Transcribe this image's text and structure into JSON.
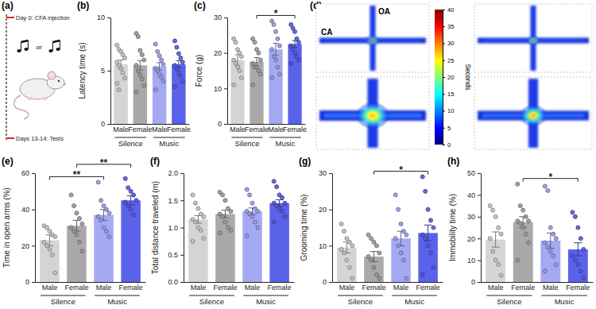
{
  "schematic": {
    "panel": "(a)",
    "start_label": "Day 0: CFA injection",
    "choice_label": "or",
    "end_label": "Days 13-14: Tests"
  },
  "heatmap_panel": {
    "panel": "(d)",
    "open_arm_label": "OA",
    "closed_arm_label": "CA",
    "colorbar": {
      "title": "Seconds",
      "range": [
        0,
        40
      ],
      "ticks": [
        0,
        5,
        10,
        15,
        20,
        25,
        30,
        35,
        40
      ]
    }
  },
  "chart_data": [
    {
      "type": "bar",
      "panel": "(b)",
      "y_label": "Latency time (s)",
      "categories": [
        "Male",
        "Female",
        "Male",
        "Female"
      ],
      "category_groups": [
        "Silence",
        "Silence",
        "Music",
        "Music"
      ],
      "values": [
        5.6,
        5.5,
        5.4,
        5.6
      ],
      "errors": [
        0.4,
        0.45,
        0.35,
        0.35
      ],
      "points": [
        [
          7.4,
          7.0,
          6.8,
          6.5,
          6.2,
          5.8,
          5.5,
          5.2,
          4.8,
          4.3,
          3.8,
          3.2
        ],
        [
          8.5,
          8.2,
          6.9,
          6.5,
          6.0,
          5.5,
          5.0,
          4.6,
          4.2,
          3.6,
          3.0
        ],
        [
          7.5,
          6.8,
          6.4,
          6.0,
          5.6,
          5.2,
          5.0,
          4.7,
          4.4,
          4.0,
          3.2
        ],
        [
          7.8,
          7.2,
          6.6,
          6.2,
          5.8,
          5.5,
          5.2,
          4.8,
          4.5,
          4.0,
          3.5
        ]
      ],
      "colors": [
        "#d4d4d4",
        "#a9a9a9",
        "#a4a9f2",
        "#5b62ea"
      ],
      "ylim": [
        0,
        10
      ],
      "yticks": [
        0,
        5,
        10
      ],
      "significance": []
    },
    {
      "type": "bar",
      "panel": "(c)",
      "y_label": "Force (g)",
      "categories": [
        "Male",
        "Female",
        "Male",
        "Female"
      ],
      "category_groups": [
        "Silence",
        "Silence",
        "Music",
        "Music"
      ],
      "values": [
        18,
        17.5,
        21,
        22.5
      ],
      "errors": [
        1.5,
        1.2,
        1.7,
        1.0
      ],
      "points": [
        [
          24,
          23,
          21,
          20,
          19,
          18,
          17,
          16,
          15,
          13,
          11
        ],
        [
          24,
          23,
          21,
          20,
          18,
          17,
          16,
          16,
          15,
          14,
          11
        ],
        [
          29,
          28,
          26,
          24,
          22,
          21,
          19,
          18,
          16,
          14,
          13
        ],
        [
          28,
          27,
          26,
          24,
          23,
          22,
          21,
          20,
          19,
          18,
          17
        ]
      ],
      "colors": [
        "#d4d4d4",
        "#a9a9a9",
        "#a4a9f2",
        "#5b62ea"
      ],
      "ylim": [
        0,
        30
      ],
      "yticks": [
        0,
        10,
        20,
        30
      ],
      "significance": [
        {
          "between": [
            1,
            3
          ],
          "label": "*"
        }
      ]
    },
    {
      "type": "bar",
      "panel": "(e)",
      "y_label": "Time in open arms (%)",
      "categories": [
        "Male",
        "Female",
        "Male",
        "Female"
      ],
      "category_groups": [
        "Silence",
        "Silence",
        "Music",
        "Music"
      ],
      "values": [
        23,
        31,
        37,
        45
      ],
      "errors": [
        3,
        3,
        3,
        2.5
      ],
      "points": [
        [
          31,
          30,
          28,
          26,
          25,
          22,
          20,
          18,
          15,
          5
        ],
        [
          48,
          42,
          38,
          35,
          32,
          30,
          28,
          26,
          22,
          17
        ],
        [
          55,
          45,
          42,
          40,
          38,
          36,
          34,
          30,
          28,
          25
        ],
        [
          57,
          52,
          50,
          48,
          45,
          44,
          42,
          40,
          37
        ]
      ],
      "colors": [
        "#d4d4d4",
        "#a9a9a9",
        "#a4a9f2",
        "#5b62ea"
      ],
      "ylim": [
        0,
        60
      ],
      "yticks": [
        0,
        20,
        40,
        60
      ],
      "significance": [
        {
          "between": [
            0,
            2
          ],
          "label": "**"
        },
        {
          "between": [
            1,
            3
          ],
          "label": "**"
        }
      ]
    },
    {
      "type": "bar",
      "panel": "(f)",
      "y_label": "Total distance traveled (m)",
      "categories": [
        "Male",
        "Female",
        "Male",
        "Female"
      ],
      "category_groups": [
        "Silence",
        "Silence",
        "Music",
        "Music"
      ],
      "values": [
        1.15,
        1.25,
        1.3,
        1.45
      ],
      "errors": [
        0.07,
        0.07,
        0.06,
        0.06
      ],
      "points": [
        [
          1.6,
          1.45,
          1.35,
          1.25,
          1.2,
          1.15,
          1.1,
          1.0,
          0.95,
          0.8,
          0.75
        ],
        [
          1.65,
          1.6,
          1.5,
          1.35,
          1.3,
          1.25,
          1.2,
          1.1,
          1.0,
          0.95,
          0.9
        ],
        [
          1.7,
          1.6,
          1.45,
          1.35,
          1.3,
          1.3,
          1.25,
          1.2,
          1.1,
          1.0,
          0.85
        ],
        [
          1.85,
          1.75,
          1.6,
          1.55,
          1.45,
          1.45,
          1.4,
          1.35,
          1.3,
          1.2,
          1.1
        ]
      ],
      "colors": [
        "#d4d4d4",
        "#a9a9a9",
        "#a4a9f2",
        "#5b62ea"
      ],
      "ylim": [
        0,
        2
      ],
      "yticks": [
        {
          "value": 0,
          "label": "0.0"
        },
        {
          "value": 0.5,
          "label": "0.5"
        },
        {
          "value": 1,
          "label": "1.0"
        },
        {
          "value": 1.5,
          "label": "1.5"
        },
        {
          "value": 2,
          "label": "2.0"
        }
      ],
      "significance": []
    },
    {
      "type": "bar",
      "panel": "(g)",
      "y_label": "Grooming time (%)",
      "categories": [
        "Male",
        "Female",
        "Male",
        "Female"
      ],
      "category_groups": [
        "Silence",
        "Silence",
        "Music",
        "Music"
      ],
      "values": [
        9.5,
        7,
        12,
        13.5
      ],
      "errors": [
        1.5,
        1.4,
        2,
        2.2
      ],
      "points": [
        [
          16,
          14,
          12,
          11,
          10,
          9,
          8,
          6,
          4,
          1
        ],
        [
          13,
          12,
          11,
          10,
          8,
          7,
          6,
          4,
          2,
          1
        ],
        [
          24,
          20,
          16,
          14,
          13,
          12,
          10,
          8,
          6,
          1
        ],
        [
          29,
          25,
          20,
          17,
          15,
          13,
          12,
          10,
          8,
          4,
          2
        ]
      ],
      "colors": [
        "#d4d4d4",
        "#a9a9a9",
        "#a4a9f2",
        "#5b62ea"
      ],
      "ylim": [
        0,
        30
      ],
      "yticks": [
        0,
        10,
        20,
        30
      ],
      "significance": [
        {
          "between": [
            1,
            3
          ],
          "label": "*"
        }
      ]
    },
    {
      "type": "bar",
      "panel": "(h)",
      "y_label": "Immobility time (%)",
      "categories": [
        "Male",
        "Female",
        "Male",
        "Female"
      ],
      "category_groups": [
        "Silence",
        "Silence",
        "Music",
        "Music"
      ],
      "values": [
        19.5,
        27.5,
        19,
        15
      ],
      "errors": [
        3.5,
        2.5,
        3.5,
        3
      ],
      "points": [
        [
          35,
          33,
          30,
          25,
          22,
          20,
          14,
          10,
          8,
          3
        ],
        [
          45,
          35,
          33,
          30,
          28,
          28,
          27,
          25,
          22,
          18,
          10
        ],
        [
          44,
          42,
          25,
          22,
          20,
          18,
          16,
          14,
          12,
          8,
          5
        ],
        [
          32,
          30,
          25,
          20,
          15,
          12,
          10,
          8,
          5,
          2
        ]
      ],
      "colors": [
        "#d4d4d4",
        "#a9a9a9",
        "#a4a9f2",
        "#5b62ea"
      ],
      "ylim": [
        0,
        50
      ],
      "yticks": [
        0,
        10,
        20,
        30,
        40,
        50
      ],
      "significance": [
        {
          "between": [
            1,
            3
          ],
          "label": "*"
        }
      ]
    }
  ]
}
